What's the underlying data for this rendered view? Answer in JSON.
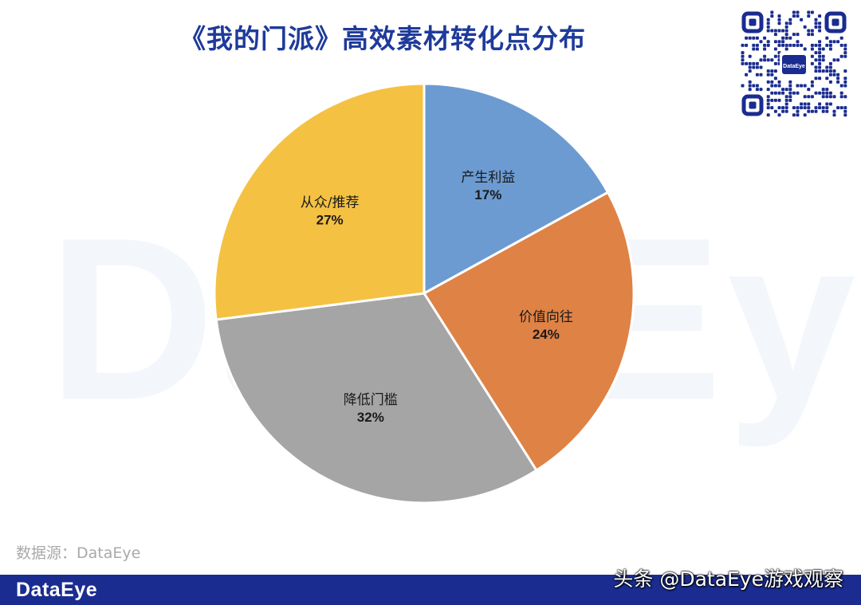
{
  "chart_data": {
    "type": "pie",
    "title": "《我的门派》高效素材转化点分布",
    "slices": [
      {
        "label": "产生利益",
        "value": 17,
        "value_label": "17%",
        "color": "#6c9bd1"
      },
      {
        "label": "价值向往",
        "value": 24,
        "value_label": "24%",
        "color": "#df8245"
      },
      {
        "label": "降低门槛",
        "value": 32,
        "value_label": "32%",
        "color": "#a5a5a5"
      },
      {
        "label": "从众/推荐",
        "value": 27,
        "value_label": "27%",
        "color": "#f4c143"
      }
    ],
    "start_angle_deg": 0,
    "direction": "clockwise"
  },
  "watermark": "DataEye",
  "qr_badge": "DataEye",
  "source": "数据源：DataEye",
  "footer": {
    "logo": "DataEye",
    "credit": "头条 @DataEye游戏观察",
    "bar_color": "#1a2c8f"
  }
}
